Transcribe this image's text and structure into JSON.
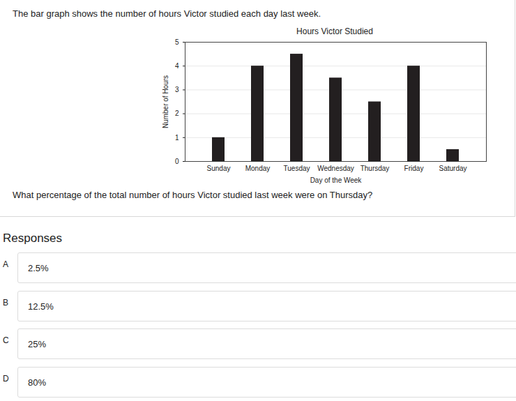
{
  "chart_data": {
    "type": "bar",
    "title": "Hours Victor Studied",
    "categories": [
      "Sunday",
      "Monday",
      "Tuesday",
      "Wednesday",
      "Thursday",
      "Friday",
      "Saturday"
    ],
    "values": [
      1,
      4,
      4.5,
      3.5,
      2.5,
      4,
      0.5
    ],
    "color": "#231f20",
    "x_label": "Day of the Week",
    "y_label": "Number of Hours",
    "ylim": [
      0,
      5
    ],
    "yticks": [
      0,
      1,
      2,
      3,
      4,
      5
    ],
    "grid": true
  },
  "intro": "The bar graph shows the number of hours Victor studied each day last week.",
  "question": "What percentage of the total number of hours Victor studied last week were on Thursday?",
  "responses_heading": "Responses",
  "responses": [
    {
      "letter": "A",
      "text": "2.5%"
    },
    {
      "letter": "B",
      "text": "12.5%"
    },
    {
      "letter": "C",
      "text": "25%"
    },
    {
      "letter": "D",
      "text": "80%"
    }
  ]
}
